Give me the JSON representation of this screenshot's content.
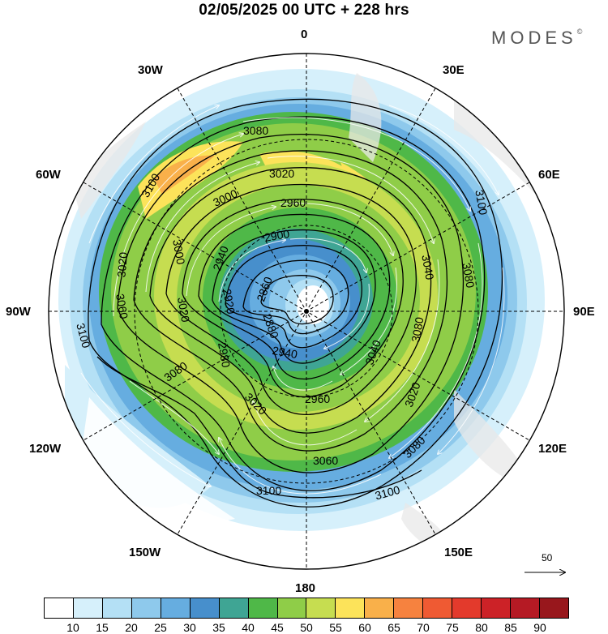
{
  "title": "02/05/2025  00 UTC  + 228 hrs",
  "brand": {
    "name": "MODES",
    "symbol": "©"
  },
  "longitude_labels": {
    "lon_0": "0",
    "lon_30e": "30E",
    "lon_60e": "60E",
    "lon_90e": "90E",
    "lon_120e": "120E",
    "lon_150e": "150E",
    "lon_180": "180",
    "lon_150w": "150W",
    "lon_120w": "120W",
    "lon_90w": "90W",
    "lon_60w": "60W",
    "lon_30w": "30W"
  },
  "contour_labels": [
    {
      "text": "3080"
    },
    {
      "text": "3100"
    },
    {
      "text": "3020"
    },
    {
      "text": "3000"
    },
    {
      "text": "2960"
    },
    {
      "text": "3100"
    },
    {
      "text": "2900"
    },
    {
      "text": "3000"
    },
    {
      "text": "2940"
    },
    {
      "text": "3040"
    },
    {
      "text": "3080"
    },
    {
      "text": "3020"
    },
    {
      "text": "2860"
    },
    {
      "text": "3020"
    },
    {
      "text": "3060"
    },
    {
      "text": "2920"
    },
    {
      "text": "3080"
    },
    {
      "text": "2980"
    },
    {
      "text": "3100"
    },
    {
      "text": "3080"
    },
    {
      "text": "2940"
    },
    {
      "text": "3040"
    },
    {
      "text": "2880"
    },
    {
      "text": "2960"
    },
    {
      "text": "3020"
    },
    {
      "text": "3020"
    },
    {
      "text": "3080"
    },
    {
      "text": "3060"
    },
    {
      "text": "3100"
    },
    {
      "text": "3100"
    }
  ],
  "vector_reference": "50",
  "colorbar": {
    "colors": [
      "#ffffff",
      "#d6f0fb",
      "#b4e0f5",
      "#8ec9ec",
      "#66ade0",
      "#478fcc",
      "#3fa594",
      "#4fb848",
      "#8fcd48",
      "#c6dd50",
      "#fce35a",
      "#f9b04a",
      "#f6823f",
      "#ef5a33",
      "#e33a2c",
      "#cc2227",
      "#b51a24",
      "#98171c"
    ],
    "labels": [
      "10",
      "15",
      "20",
      "25",
      "30",
      "35",
      "40",
      "45",
      "50",
      "55",
      "60",
      "65",
      "70",
      "75",
      "80",
      "85",
      "90"
    ]
  }
}
